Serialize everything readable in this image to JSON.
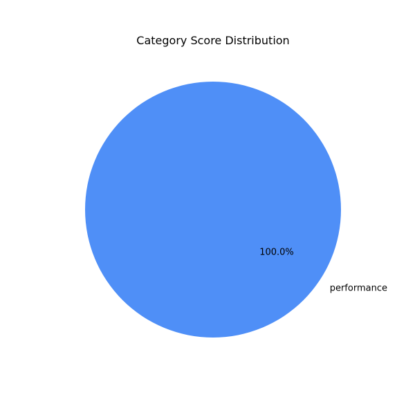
{
  "chart_data": {
    "type": "pie",
    "title": "Category Score Distribution",
    "slices": [
      {
        "label": "performance",
        "value": 100.0,
        "percent_label": "100.0%",
        "color": "#4f8ff7"
      }
    ]
  }
}
